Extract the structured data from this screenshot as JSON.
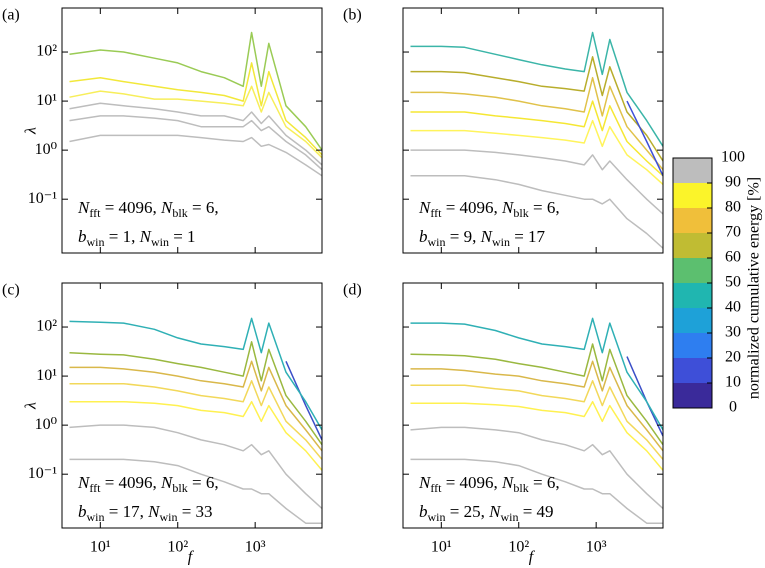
{
  "chart_data": [
    {
      "type": "line",
      "panel_label": "(a)",
      "ylabel": "λ",
      "xscale": "log",
      "yscale": "log",
      "xlim": [
        3.2,
        7300
      ],
      "ylim": [
        0.008,
        790
      ],
      "xticks": [
        10,
        100,
        1000
      ],
      "yticks": [
        {
          "value": 0.1,
          "label": "10⁻¹"
        },
        {
          "value": 1,
          "label": "10⁰"
        },
        {
          "value": 10,
          "label": "10¹"
        },
        {
          "value": 100,
          "label": "10²"
        }
      ],
      "annotation": [
        [
          "N",
          {
            "sub": "fft"
          },
          " = 4096, ",
          "N",
          {
            "sub": "blk"
          },
          " = 6,"
        ],
        [
          "b",
          {
            "sub": "win"
          },
          " = 1, ",
          "N",
          {
            "sub": "win"
          },
          " = 1"
        ]
      ],
      "x": [
        4,
        10,
        20,
        50,
        100,
        200,
        400,
        700,
        900,
        1200,
        1500,
        2500,
        4500,
        7300
      ],
      "series": [
        {
          "color": "#bdbdbd",
          "values": [
            1.5,
            2,
            2,
            2,
            2,
            1.8,
            1.6,
            1.5,
            1.8,
            1.2,
            1.3,
            0.9,
            0.5,
            0.3
          ]
        },
        {
          "color": "#bdbdbd",
          "values": [
            4,
            5,
            5,
            4.5,
            4,
            3,
            3,
            3,
            4,
            2.5,
            3,
            1.5,
            0.8,
            0.4
          ]
        },
        {
          "color": "#bdbdbd",
          "values": [
            7,
            9,
            8,
            7,
            6,
            5,
            5,
            4,
            6,
            3.5,
            5,
            2,
            1,
            0.5
          ]
        },
        {
          "color": "#f7ee5a",
          "values": [
            12,
            16,
            14,
            11,
            11,
            10,
            9,
            8,
            20,
            6,
            15,
            3,
            1.5,
            0.7
          ]
        },
        {
          "color": "#f2e83a",
          "values": [
            25,
            30,
            25,
            20,
            17,
            15,
            13,
            10,
            60,
            8,
            40,
            4,
            1.8,
            0.8
          ]
        },
        {
          "color": "#9acb55",
          "values": [
            90,
            110,
            100,
            75,
            60,
            40,
            30,
            20,
            250,
            20,
            150,
            8,
            3,
            1
          ]
        }
      ]
    },
    {
      "type": "line",
      "panel_label": "(b)",
      "xscale": "log",
      "yscale": "log",
      "xlim": [
        3.2,
        7300
      ],
      "ylim": [
        0.008,
        790
      ],
      "xticks": [
        10,
        100,
        1000
      ],
      "yticks": [
        0.1,
        1,
        10,
        100
      ],
      "annotation": [
        [
          "N",
          {
            "sub": "fft"
          },
          " = 4096, ",
          "N",
          {
            "sub": "blk"
          },
          " = 6,"
        ],
        [
          "b",
          {
            "sub": "win"
          },
          " = 9, ",
          "N",
          {
            "sub": "win"
          },
          " = 17"
        ]
      ],
      "x": [
        4,
        10,
        20,
        50,
        100,
        200,
        400,
        700,
        900,
        1200,
        1500,
        2500,
        4500,
        7300
      ],
      "series": [
        {
          "color": "#bdbdbd",
          "values": [
            0.3,
            0.3,
            0.3,
            0.25,
            0.2,
            0.15,
            0.12,
            0.1,
            0.1,
            0.08,
            0.1,
            0.04,
            0.02,
            0.01
          ]
        },
        {
          "color": "#bdbdbd",
          "values": [
            1,
            1,
            1,
            0.9,
            0.8,
            0.7,
            0.6,
            0.5,
            0.8,
            0.4,
            0.6,
            0.25,
            0.1,
            0.05
          ]
        },
        {
          "color": "#fff45c",
          "values": [
            2.5,
            2.5,
            2.5,
            2.2,
            2,
            1.8,
            1.6,
            1.4,
            4,
            1.2,
            3,
            0.8,
            0.4,
            0.2
          ]
        },
        {
          "color": "#f5e733",
          "values": [
            6,
            6,
            6,
            5,
            4.5,
            4,
            3.5,
            3,
            10,
            2.5,
            8,
            1.5,
            0.6,
            0.3
          ]
        },
        {
          "color": "#e0c24a",
          "values": [
            15,
            15,
            14,
            12,
            10,
            8,
            7,
            6,
            30,
            5,
            20,
            3,
            1,
            0.4
          ]
        },
        {
          "color": "#b8ad2c",
          "values": [
            40,
            40,
            38,
            30,
            25,
            20,
            18,
            16,
            80,
            13,
            50,
            6,
            2,
            0.6
          ]
        },
        {
          "color": "#3e4fd8",
          "values": [
            null,
            null,
            null,
            null,
            null,
            null,
            null,
            null,
            null,
            null,
            null,
            10,
            1.5,
            0.3
          ]
        },
        {
          "color": "#3bb5a8",
          "values": [
            130,
            130,
            125,
            90,
            70,
            55,
            45,
            40,
            250,
            35,
            180,
            15,
            4,
            1.2
          ]
        }
      ]
    },
    {
      "type": "line",
      "panel_label": "(c)",
      "xlabel": "f",
      "ylabel": "λ",
      "xscale": "log",
      "yscale": "log",
      "xlim": [
        3.2,
        7300
      ],
      "ylim": [
        0.008,
        790
      ],
      "xticks": [
        {
          "value": 10,
          "label": "10¹"
        },
        {
          "value": 100,
          "label": "10²"
        },
        {
          "value": 1000,
          "label": "10³"
        }
      ],
      "yticks": [
        {
          "value": 0.1,
          "label": "10⁻¹"
        },
        {
          "value": 1,
          "label": "10⁰"
        },
        {
          "value": 10,
          "label": "10¹"
        },
        {
          "value": 100,
          "label": "10²"
        }
      ],
      "annotation": [
        [
          "N",
          {
            "sub": "fft"
          },
          " = 4096, ",
          "N",
          {
            "sub": "blk"
          },
          " = 6,"
        ],
        [
          "b",
          {
            "sub": "win"
          },
          " = 17, ",
          "N",
          {
            "sub": "win"
          },
          " = 33"
        ]
      ],
      "x": [
        4,
        10,
        20,
        50,
        100,
        200,
        400,
        700,
        900,
        1200,
        1500,
        2500,
        4500,
        7300
      ],
      "series": [
        {
          "color": "#bdbdbd",
          "values": [
            0.2,
            0.2,
            0.2,
            0.18,
            0.15,
            0.1,
            0.07,
            0.05,
            0.05,
            0.04,
            0.04,
            0.02,
            0.01,
            0.01
          ]
        },
        {
          "color": "#bdbdbd",
          "values": [
            0.9,
            1,
            1,
            0.9,
            0.7,
            0.5,
            0.4,
            0.3,
            0.4,
            0.25,
            0.3,
            0.1,
            0.04,
            0.02
          ]
        },
        {
          "color": "#fff150",
          "values": [
            3,
            3,
            3,
            2.8,
            2.5,
            2,
            1.8,
            1.5,
            3,
            1.2,
            2.5,
            0.7,
            0.3,
            0.12
          ]
        },
        {
          "color": "#f2d85a",
          "values": [
            7,
            7,
            7,
            6,
            5,
            4,
            3.5,
            3,
            8,
            2.5,
            6,
            1.2,
            0.5,
            0.2
          ]
        },
        {
          "color": "#d9b84a",
          "values": [
            15,
            15,
            14,
            12,
            10,
            8,
            7,
            6,
            20,
            5,
            15,
            2.5,
            0.8,
            0.3
          ]
        },
        {
          "color": "#9ab840",
          "values": [
            30,
            28,
            27,
            22,
            18,
            15,
            12,
            10,
            50,
            8,
            35,
            4,
            1.2,
            0.4
          ]
        },
        {
          "color": "#3b4fc8",
          "values": [
            null,
            null,
            null,
            null,
            null,
            null,
            null,
            null,
            null,
            null,
            null,
            20,
            2.5,
            0.5
          ]
        },
        {
          "color": "#2fb0b5",
          "values": [
            130,
            125,
            120,
            90,
            60,
            45,
            40,
            35,
            150,
            30,
            120,
            12,
            3,
            0.8
          ]
        }
      ]
    },
    {
      "type": "line",
      "panel_label": "(d)",
      "xlabel": "f",
      "xscale": "log",
      "yscale": "log",
      "xlim": [
        3.2,
        7300
      ],
      "ylim": [
        0.008,
        790
      ],
      "xticks": [
        {
          "value": 10,
          "label": "10¹"
        },
        {
          "value": 100,
          "label": "10²"
        },
        {
          "value": 1000,
          "label": "10³"
        }
      ],
      "yticks": [
        0.1,
        1,
        10,
        100
      ],
      "annotation": [
        [
          "N",
          {
            "sub": "fft"
          },
          " = 4096, ",
          "N",
          {
            "sub": "blk"
          },
          " = 6,"
        ],
        [
          "b",
          {
            "sub": "win"
          },
          " = 25, ",
          "N",
          {
            "sub": "win"
          },
          " = 49"
        ]
      ],
      "x": [
        4,
        10,
        20,
        50,
        100,
        200,
        400,
        700,
        900,
        1200,
        1500,
        2500,
        4500,
        7300
      ],
      "series": [
        {
          "color": "#bdbdbd",
          "values": [
            0.2,
            0.2,
            0.2,
            0.18,
            0.15,
            0.1,
            0.07,
            0.05,
            0.05,
            0.04,
            0.04,
            0.02,
            0.01,
            0.01
          ]
        },
        {
          "color": "#bdbdbd",
          "values": [
            0.8,
            0.9,
            0.9,
            0.8,
            0.7,
            0.5,
            0.4,
            0.3,
            0.4,
            0.25,
            0.3,
            0.1,
            0.04,
            0.02
          ]
        },
        {
          "color": "#fff150",
          "values": [
            2.8,
            2.8,
            2.8,
            2.6,
            2.4,
            2,
            1.8,
            1.5,
            3,
            1.2,
            2.5,
            0.7,
            0.3,
            0.12
          ]
        },
        {
          "color": "#f2d85a",
          "values": [
            6.5,
            6.5,
            6.5,
            5.5,
            5,
            4,
            3.5,
            3,
            8,
            2.5,
            6,
            1.2,
            0.5,
            0.2
          ]
        },
        {
          "color": "#d9b84a",
          "values": [
            14,
            14,
            13,
            11,
            10,
            8,
            7,
            6,
            20,
            5,
            15,
            2.5,
            0.8,
            0.3
          ]
        },
        {
          "color": "#9ab840",
          "values": [
            28,
            27,
            26,
            22,
            18,
            15,
            12,
            10,
            45,
            8,
            35,
            4,
            1.2,
            0.4
          ]
        },
        {
          "color": "#3b4fc8",
          "values": [
            null,
            null,
            null,
            null,
            null,
            null,
            null,
            null,
            null,
            null,
            null,
            25,
            3,
            0.6
          ]
        },
        {
          "color": "#2fb0b5",
          "values": [
            120,
            120,
            115,
            85,
            60,
            45,
            40,
            35,
            150,
            30,
            120,
            12,
            3,
            0.8
          ]
        }
      ]
    }
  ],
  "colorbar": {
    "label": "normalized cumulative energy [%]",
    "lim": [
      0,
      100
    ],
    "ticks": [
      0,
      10,
      20,
      30,
      40,
      50,
      60,
      70,
      80,
      90,
      100
    ],
    "colors": [
      "#3a2a9a",
      "#3e4fd8",
      "#2e7ef0",
      "#1ea1d8",
      "#20b6b0",
      "#5cbf6f",
      "#c0bc33",
      "#f0bf3a",
      "#fbf42a",
      "#bdbdbd"
    ]
  }
}
